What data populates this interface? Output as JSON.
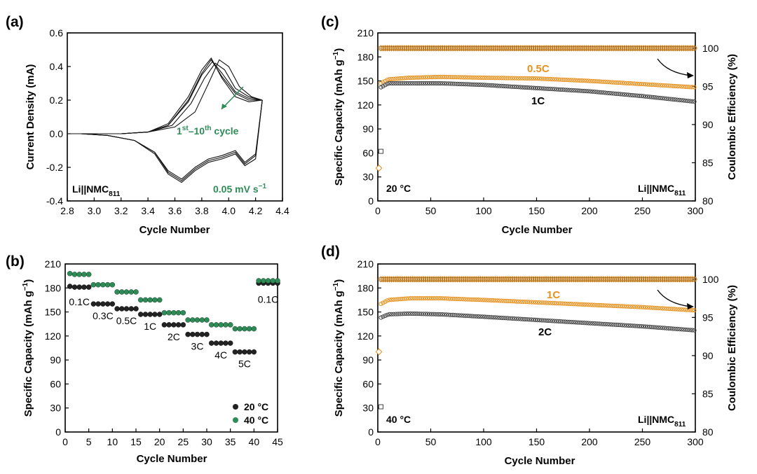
{
  "chart_data": [
    {
      "panel": "(a)",
      "type": "line",
      "xlabel": "Cycle Number",
      "ylabel": "Current Density (mA)",
      "xlim": [
        2.8,
        4.4
      ],
      "ylim": [
        -0.4,
        0.6
      ],
      "xticks": [
        "2.8",
        "3.0",
        "3.2",
        "3.4",
        "3.6",
        "3.8",
        "4.0",
        "4.2",
        "4.4"
      ],
      "yticks": [
        "-0.4",
        "-0.2",
        "0.0",
        "0.2",
        "0.4",
        "0.6"
      ],
      "annotations": {
        "cell_base": "Li||NMC",
        "cell_sub": "811",
        "rate": "0.05 mV s",
        "rate_sup": "−1",
        "cycle_a": "1",
        "cycle_a_sup": "st",
        "cycle_mid": "–10",
        "cycle_b_sup": "th",
        "cycle_end": " cycle"
      },
      "anodic_curves": [
        {
          "x": [
            2.8,
            3.0,
            3.2,
            3.4,
            3.55,
            3.7,
            3.8,
            3.87,
            3.95,
            4.05,
            4.15,
            4.25
          ],
          "y": [
            0.0,
            0.0,
            0.0,
            0.01,
            0.06,
            0.22,
            0.38,
            0.45,
            0.33,
            0.22,
            0.19,
            0.2
          ]
        },
        {
          "x": [
            2.8,
            3.0,
            3.2,
            3.4,
            3.55,
            3.7,
            3.8,
            3.87,
            3.95,
            4.05,
            4.15,
            4.25
          ],
          "y": [
            0.0,
            0.0,
            0.0,
            0.01,
            0.05,
            0.2,
            0.36,
            0.44,
            0.34,
            0.24,
            0.2,
            0.2
          ]
        },
        {
          "x": [
            2.8,
            3.0,
            3.2,
            3.4,
            3.55,
            3.7,
            3.8,
            3.88,
            3.95,
            4.05,
            4.15,
            4.25
          ],
          "y": [
            0.0,
            0.0,
            0.0,
            0.01,
            0.05,
            0.19,
            0.35,
            0.43,
            0.36,
            0.25,
            0.21,
            0.2
          ]
        },
        {
          "x": [
            2.8,
            3.0,
            3.2,
            3.4,
            3.58,
            3.72,
            3.82,
            3.9,
            3.97,
            4.05,
            4.15,
            4.25
          ],
          "y": [
            0.0,
            0.0,
            0.0,
            0.01,
            0.05,
            0.18,
            0.33,
            0.42,
            0.38,
            0.27,
            0.22,
            0.2
          ]
        },
        {
          "x": [
            2.8,
            3.0,
            3.2,
            3.4,
            3.6,
            3.75,
            3.85,
            3.93,
            4.0,
            4.08,
            4.17,
            4.25
          ],
          "y": [
            0.0,
            0.0,
            0.0,
            0.01,
            0.04,
            0.13,
            0.3,
            0.44,
            0.4,
            0.28,
            0.22,
            0.2
          ]
        }
      ],
      "cathodic_curves": [
        {
          "x": [
            4.25,
            4.2,
            4.12,
            4.05,
            3.95,
            3.85,
            3.75,
            3.65,
            3.55,
            3.45,
            3.3,
            3.1,
            2.9,
            2.8
          ],
          "y": [
            0.2,
            -0.15,
            -0.19,
            -0.12,
            -0.15,
            -0.17,
            -0.22,
            -0.29,
            -0.24,
            -0.12,
            -0.04,
            -0.01,
            0.0,
            0.0
          ]
        },
        {
          "x": [
            4.25,
            4.2,
            4.12,
            4.05,
            3.95,
            3.85,
            3.75,
            3.65,
            3.55,
            3.45,
            3.3,
            3.1,
            2.9,
            2.8
          ],
          "y": [
            0.2,
            -0.13,
            -0.18,
            -0.11,
            -0.14,
            -0.16,
            -0.21,
            -0.28,
            -0.23,
            -0.11,
            -0.04,
            -0.01,
            0.0,
            0.0
          ]
        },
        {
          "x": [
            4.25,
            4.2,
            4.12,
            4.05,
            3.95,
            3.85,
            3.75,
            3.65,
            3.55,
            3.45,
            3.3,
            3.1,
            2.9,
            2.8
          ],
          "y": [
            0.2,
            -0.12,
            -0.17,
            -0.1,
            -0.13,
            -0.15,
            -0.2,
            -0.27,
            -0.22,
            -0.11,
            -0.04,
            -0.01,
            0.0,
            0.0
          ]
        }
      ]
    },
    {
      "panel": "(b)",
      "type": "scatter",
      "xlabel": "Cycle Number",
      "ylabel": "Specific Capacity (mAh g",
      "ylabel_sup": "−1",
      "ylabel_end": ")",
      "xlim": [
        0,
        45
      ],
      "ylim": [
        0,
        210
      ],
      "xticks": [
        "0",
        "5",
        "10",
        "15",
        "20",
        "25",
        "30",
        "35",
        "40",
        "45"
      ],
      "yticks": [
        "0",
        "30",
        "60",
        "90",
        "120",
        "150",
        "180",
        "210"
      ],
      "series": [
        {
          "name": "20 °C",
          "color": "#222222",
          "steps": [
            181,
            160,
            154,
            147,
            134,
            122,
            111,
            100,
            186
          ]
        },
        {
          "name": "40 °C",
          "color": "#2e8b57",
          "steps": [
            197,
            184,
            175,
            165,
            149,
            140,
            134,
            129,
            189
          ]
        }
      ],
      "rate_labels": [
        "0.1C",
        "0.3C",
        "0.5C",
        "1C",
        "2C",
        "3C",
        "4C",
        "5C",
        "0.1C"
      ]
    },
    {
      "panel": "(c)",
      "type": "line",
      "xlabel": "Cycle Number",
      "ylabel": "Specific Capacity (mAh g",
      "ylabel_sup": "−1",
      "ylabel_end": ")",
      "y2label": "Coulombic Efficiency (%)",
      "xlim": [
        0,
        300
      ],
      "ylim": [
        0,
        210
      ],
      "y2lim": [
        80,
        102
      ],
      "xticks": [
        "0",
        "50",
        "100",
        "150",
        "200",
        "250",
        "300"
      ],
      "yticks": [
        "0",
        "30",
        "60",
        "90",
        "120",
        "150",
        "180",
        "210"
      ],
      "y2ticks": [
        "80",
        "85",
        "90",
        "95",
        "100"
      ],
      "temperature": "20 °C",
      "cell_base": "Li||NMC",
      "cell_sub": "811",
      "series": [
        {
          "name": "0.5C",
          "color": "#e8901c",
          "x": [
            3,
            10,
            30,
            60,
            100,
            150,
            200,
            250,
            300
          ],
          "y": [
            147,
            152,
            154,
            155,
            154,
            153,
            150,
            146,
            142
          ]
        },
        {
          "name": "1C",
          "color": "#444444",
          "x": [
            3,
            10,
            30,
            60,
            100,
            150,
            200,
            250,
            300
          ],
          "y": [
            142,
            147,
            147,
            147,
            145,
            141,
            137,
            131,
            124
          ]
        }
      ],
      "ce_value": 100,
      "ce_outliers": [
        {
          "x": 3,
          "y": 86.5
        },
        {
          "x": 1,
          "y": 84.3
        }
      ]
    },
    {
      "panel": "(d)",
      "type": "line",
      "xlabel": "Cycle Number",
      "ylabel": "Specific Capacity (mAh g",
      "ylabel_sup": "−1",
      "ylabel_end": ")",
      "y2label": "Coulombic Efficiency (%)",
      "xlim": [
        0,
        300
      ],
      "ylim": [
        0,
        210
      ],
      "y2lim": [
        80,
        102
      ],
      "xticks": [
        "0",
        "50",
        "100",
        "150",
        "200",
        "250",
        "300"
      ],
      "yticks": [
        "0",
        "30",
        "60",
        "90",
        "120",
        "150",
        "180",
        "210"
      ],
      "y2ticks": [
        "80",
        "85",
        "90",
        "95",
        "100"
      ],
      "temperature": "40 °C",
      "cell_base": "Li||NMC",
      "cell_sub": "811",
      "series": [
        {
          "name": "1C",
          "color": "#e8901c",
          "x": [
            3,
            10,
            30,
            60,
            100,
            150,
            200,
            250,
            300
          ],
          "y": [
            160,
            165,
            167,
            167,
            165,
            162,
            159,
            156,
            152
          ]
        },
        {
          "name": "2C",
          "color": "#444444",
          "x": [
            3,
            10,
            30,
            60,
            100,
            150,
            200,
            250,
            300
          ],
          "y": [
            143,
            147,
            148,
            147,
            144,
            140,
            136,
            132,
            127
          ]
        }
      ],
      "ce_value": 100,
      "ce_outliers": [
        {
          "x": 3,
          "y": 83.3
        },
        {
          "x": 1,
          "y": 90.5
        }
      ]
    }
  ]
}
